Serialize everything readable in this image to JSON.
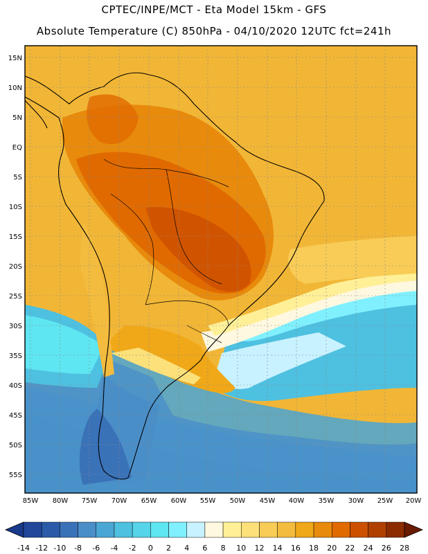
{
  "header": {
    "line1": "CPTEC/INPE/MCT -  Eta Model 15km - GFS",
    "line2": "Absolute Temperature (C) 850hPa - 04/10/2020 12UTC fct=241h"
  },
  "map": {
    "lat_labels": [
      "15N",
      "10N",
      "5N",
      "EQ",
      "5S",
      "10S",
      "15S",
      "20S",
      "25S",
      "30S",
      "35S",
      "40S",
      "45S",
      "50S",
      "55S"
    ],
    "lon_labels": [
      "85W",
      "80W",
      "75W",
      "70W",
      "65W",
      "60W",
      "55W",
      "50W",
      "45W",
      "40W",
      "35W",
      "30W",
      "25W",
      "20W"
    ]
  },
  "colorbar": {
    "labels": [
      "-14",
      "-12",
      "-10",
      "-8",
      "-6",
      "-4",
      "-2",
      "0",
      "2",
      "4",
      "6",
      "8",
      "10",
      "12",
      "14",
      "16",
      "18",
      "20",
      "22",
      "24",
      "26",
      "28"
    ],
    "colors": [
      "#1a3a8c",
      "#21479a",
      "#2a5aa8",
      "#3a72b8",
      "#4a8ec8",
      "#4aa6d4",
      "#4ec0e0",
      "#56d4ea",
      "#5ee6f2",
      "#80f0ff",
      "#c8f2ff",
      "#fff8e0",
      "#fff098",
      "#fce07a",
      "#f8cc56",
      "#f4bc3e",
      "#f0a818",
      "#e88a0c",
      "#e06a00",
      "#cc5000",
      "#b04000",
      "#8c2a00",
      "#6a1a00"
    ]
  }
}
